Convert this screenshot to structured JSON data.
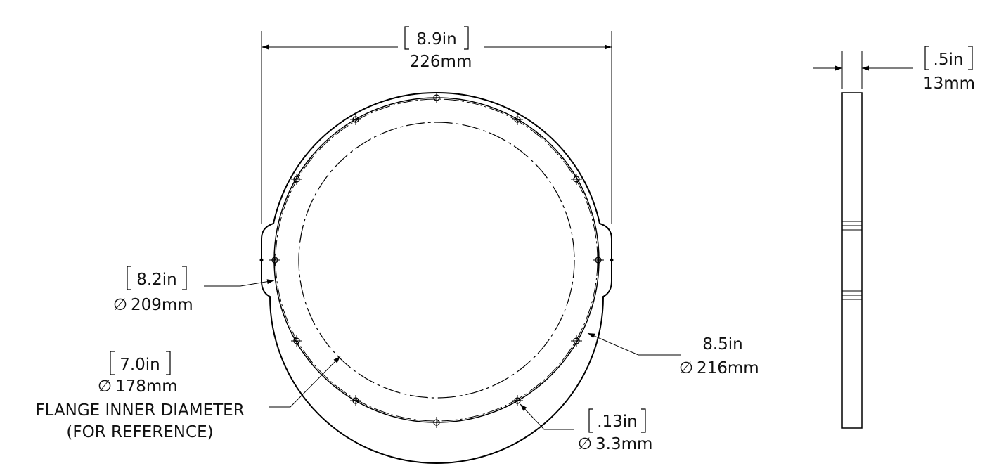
{
  "drawing": {
    "overall_width": {
      "inches": "8.9in",
      "mm": "226mm"
    },
    "thickness": {
      "inches": ".5in",
      "mm": "13mm"
    },
    "outer_diameter_a": {
      "inches": "8.2in",
      "symbol": "∅",
      "mm": "209mm"
    },
    "outer_diameter_b": {
      "inches": "8.5in",
      "symbol": "∅",
      "mm": "216mm"
    },
    "inner_diameter": {
      "inches": "7.0in",
      "symbol": "∅",
      "mm": "178mm",
      "note1": "FLANGE INNER DIAMETER",
      "note2": "(FOR REFERENCE)"
    },
    "hole": {
      "inches": ".13in",
      "symbol": "∅",
      "mm": "3.3mm"
    }
  }
}
